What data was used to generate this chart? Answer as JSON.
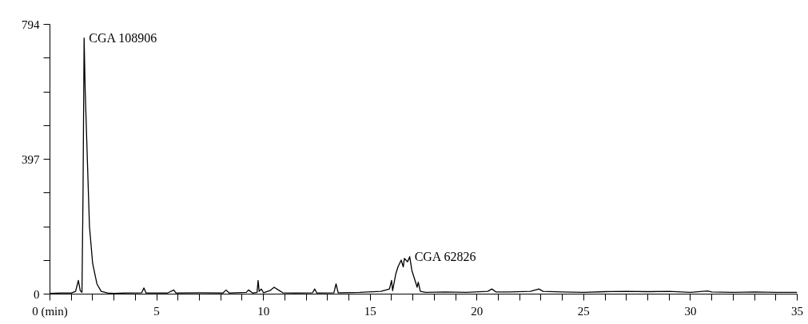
{
  "chart_data": {
    "type": "line",
    "x": [
      0,
      0.5,
      1.0,
      1.2,
      1.33,
      1.42,
      1.5,
      1.55,
      1.6,
      1.65,
      1.75,
      1.85,
      2.0,
      2.2,
      2.4,
      2.7,
      3.0,
      3.5,
      4.3,
      4.4,
      4.5,
      5.5,
      5.8,
      5.9,
      7.0,
      8.1,
      8.25,
      8.4,
      9.2,
      9.3,
      9.5,
      9.7,
      9.75,
      9.8,
      9.9,
      10.0,
      10.3,
      10.5,
      10.7,
      10.9,
      11.5,
      12.3,
      12.4,
      12.5,
      13.3,
      13.4,
      13.5,
      14.5,
      15.5,
      15.9,
      16.0,
      16.05,
      16.2,
      16.3,
      16.45,
      16.55,
      16.6,
      16.75,
      16.85,
      16.95,
      17.1,
      17.2,
      17.25,
      17.35,
      17.6,
      18.5,
      19.5,
      20.5,
      20.7,
      20.9,
      21.5,
      22.5,
      22.9,
      23.1,
      24,
      25,
      26,
      27,
      28,
      29,
      30,
      30.8,
      31,
      32,
      33,
      34,
      35
    ],
    "series": [
      {
        "color": "#000000",
        "values": [
          2,
          3,
          3,
          8,
          40,
          10,
          5,
          300,
          754,
          600,
          400,
          200,
          90,
          30,
          8,
          3,
          2,
          3,
          4,
          18,
          3,
          3,
          12,
          3,
          4,
          3,
          12,
          3,
          5,
          12,
          3,
          5,
          40,
          8,
          15,
          4,
          10,
          20,
          12,
          4,
          3,
          4,
          15,
          3,
          4,
          30,
          4,
          5,
          8,
          15,
          40,
          10,
          60,
          80,
          100,
          80,
          105,
          95,
          110,
          70,
          40,
          20,
          35,
          8,
          5,
          6,
          5,
          8,
          15,
          6,
          6,
          8,
          15,
          8,
          6,
          5,
          7,
          8,
          7,
          8,
          5,
          9,
          6,
          5,
          6,
          5,
          5
        ]
      }
    ],
    "xlim": [
      0,
      35
    ],
    "ylim": [
      0,
      794
    ],
    "xticks": [
      {
        "value": 0,
        "label": "0 (min)"
      },
      {
        "value": 1,
        "label": null
      },
      {
        "value": 2,
        "label": null
      },
      {
        "value": 3,
        "label": null
      },
      {
        "value": 4,
        "label": null
      },
      5,
      {
        "value": 6,
        "label": null
      },
      {
        "value": 7,
        "label": null
      },
      {
        "value": 8,
        "label": null
      },
      {
        "value": 9,
        "label": null
      },
      10,
      {
        "value": 11,
        "label": null
      },
      {
        "value": 12,
        "label": null
      },
      {
        "value": 13,
        "label": null
      },
      {
        "value": 14,
        "label": null
      },
      15,
      {
        "value": 16,
        "label": null
      },
      {
        "value": 17,
        "label": null
      },
      {
        "value": 18,
        "label": null
      },
      {
        "value": 19,
        "label": null
      },
      20,
      {
        "value": 21,
        "label": null
      },
      {
        "value": 22,
        "label": null
      },
      {
        "value": 23,
        "label": null
      },
      {
        "value": 24,
        "label": null
      },
      25,
      {
        "value": 26,
        "label": null
      },
      {
        "value": 27,
        "label": null
      },
      {
        "value": 28,
        "label": null
      },
      {
        "value": 29,
        "label": null
      },
      30,
      {
        "value": 31,
        "label": null
      },
      {
        "value": 32,
        "label": null
      },
      {
        "value": 33,
        "label": null
      },
      {
        "value": 34,
        "label": null
      },
      35
    ],
    "yticks": [
      0,
      {
        "value": 99.25,
        "label": null
      },
      {
        "value": 198.5,
        "label": null
      },
      {
        "value": 297.75,
        "label": null
      },
      397,
      {
        "value": 496.25,
        "label": null
      },
      {
        "value": 595.5,
        "label": null
      },
      {
        "value": 694.75,
        "label": null
      },
      794
    ],
    "annotations": [
      {
        "text": "CGA 108906",
        "x": 1.6,
        "y": 754
      },
      {
        "text": "CGA 62826",
        "x": 16.85,
        "y": 110
      }
    ],
    "grid": false,
    "marker": "none",
    "line_style": "solid"
  }
}
